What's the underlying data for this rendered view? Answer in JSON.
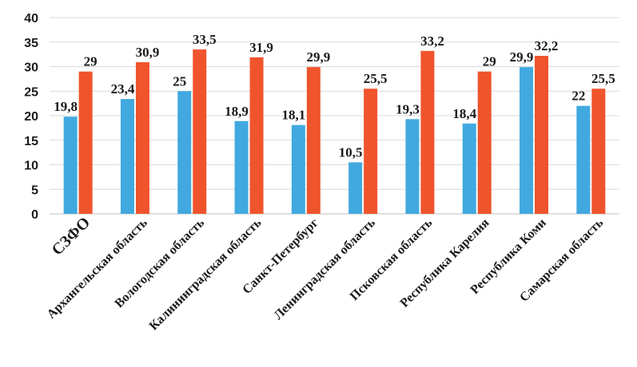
{
  "chart_data": {
    "type": "bar",
    "categories": [
      "СЗФО",
      "Архангельская область",
      "Вологодская область",
      "Калининградская область",
      "Санкт-Петербург",
      "Ленинградская область",
      "Псковская область",
      "Республика Карелия",
      "Республика Коми",
      "Самарская область"
    ],
    "series": [
      {
        "values": [
          19.8,
          23.4,
          25,
          18.9,
          18.1,
          10.5,
          19.3,
          18.4,
          29.9,
          22
        ],
        "color": "#41a9e0"
      },
      {
        "values": [
          29,
          30.9,
          33.5,
          31.9,
          29.9,
          25.5,
          33.2,
          29,
          32.2,
          25.5
        ],
        "color": "#f0542c"
      }
    ],
    "value_labels": [
      [
        "19,8",
        "23,4",
        "25",
        "18,9",
        "18,1",
        "10,5",
        "19,3",
        "18,4",
        "29,9",
        "22"
      ],
      [
        "29",
        "30,9",
        "33,5",
        "31,9",
        "29,9",
        "25,5",
        "33,2",
        "29",
        "32,2",
        "25,5"
      ]
    ],
    "yticks": [
      "0",
      "5",
      "10",
      "15",
      "20",
      "25",
      "30",
      "35",
      "40"
    ],
    "ylim": [
      0,
      40
    ],
    "title": "",
    "xlabel": "",
    "ylabel": "",
    "grid": true,
    "legend": "none"
  }
}
